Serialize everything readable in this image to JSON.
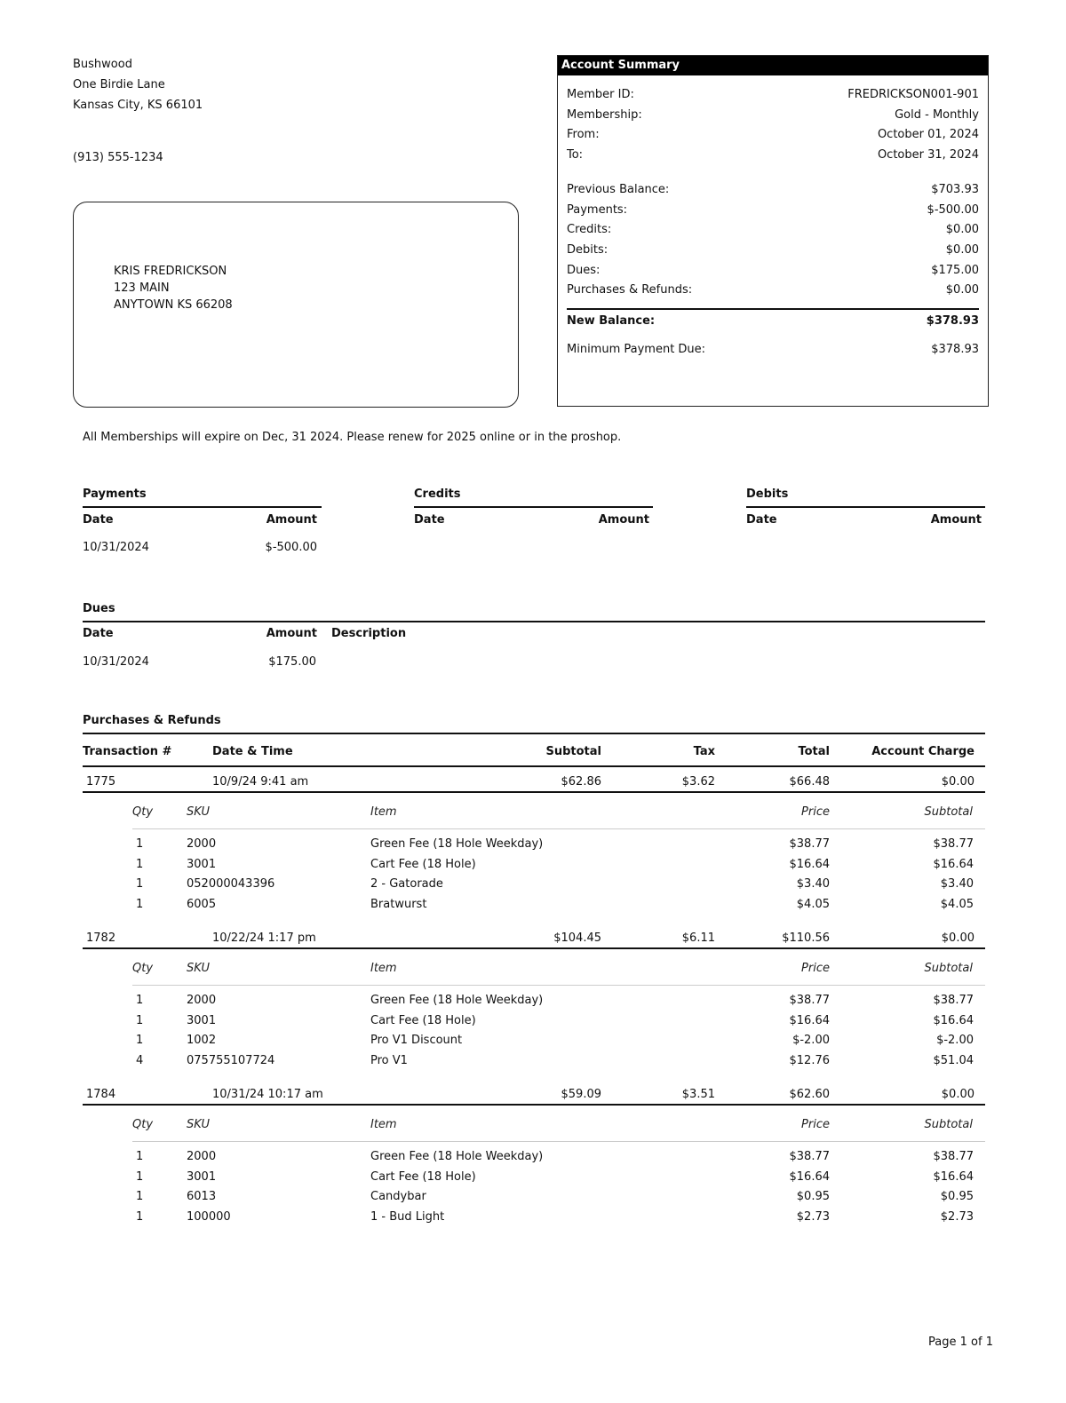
{
  "club": {
    "name": "Bushwood",
    "address1": "One Birdie Lane",
    "address2": "Kansas City, KS 66101",
    "phone": "(913) 555-1234"
  },
  "recipient": {
    "name": "KRIS FREDRICKSON",
    "address1": "123 MAIN",
    "address2": "ANYTOWN KS  66208"
  },
  "summary": {
    "title": "Account Summary",
    "rows": [
      {
        "label": "Member ID:",
        "value": "FREDRICKSON001-901"
      },
      {
        "label": "Membership:",
        "value": "Gold - Monthly"
      },
      {
        "label": "From:",
        "value": "October 01, 2024"
      },
      {
        "label": "To:",
        "value": "October 31, 2024"
      },
      {
        "label": "Previous Balance:",
        "value": "$703.93"
      },
      {
        "label": "Payments:",
        "value": "$-500.00"
      },
      {
        "label": "Credits:",
        "value": "$0.00"
      },
      {
        "label": "Debits:",
        "value": "$0.00"
      },
      {
        "label": "Dues:",
        "value": "$175.00"
      },
      {
        "label": "Purchases & Refunds:",
        "value": "$0.00"
      }
    ],
    "new_balance_label": "New Balance:",
    "new_balance": "$378.93",
    "min_payment_label": "Minimum Payment Due:",
    "min_payment": "$378.93"
  },
  "notice": "All Memberships will expire on Dec, 31 2024.  Please renew for 2025 online or in the proshop.",
  "payments": {
    "title": "Payments",
    "date_label": "Date",
    "amount_label": "Amount",
    "rows": [
      {
        "date": "10/31/2024",
        "amount": "$-500.00"
      }
    ]
  },
  "credits": {
    "title": "Credits",
    "date_label": "Date",
    "amount_label": "Amount"
  },
  "debits": {
    "title": "Debits",
    "date_label": "Date",
    "amount_label": "Amount"
  },
  "dues": {
    "title": "Dues",
    "date_label": "Date",
    "amount_label": "Amount",
    "description_label": "Description",
    "rows": [
      {
        "date": "10/31/2024",
        "amount": "$175.00",
        "description": ""
      }
    ]
  },
  "purchases": {
    "title": "Purchases & Refunds",
    "headers": {
      "txn": "Transaction #",
      "datetime": "Date & Time",
      "subtotal": "Subtotal",
      "tax": "Tax",
      "total": "Total",
      "account_charge": "Account Charge"
    },
    "item_headers": {
      "qty": "Qty",
      "sku": "SKU",
      "item": "Item",
      "price": "Price",
      "subtotal": "Subtotal"
    },
    "transactions": [
      {
        "txn": "1775",
        "datetime": "10/9/24   9:41 am",
        "subtotal": "$62.86",
        "tax": "$3.62",
        "total": "$66.48",
        "account_charge": "$0.00",
        "items": [
          {
            "qty": "1",
            "sku": "2000",
            "item": "Green Fee (18 Hole Weekday)",
            "price": "$38.77",
            "subtotal": "$38.77"
          },
          {
            "qty": "1",
            "sku": "3001",
            "item": "Cart Fee (18 Hole)",
            "price": "$16.64",
            "subtotal": "$16.64"
          },
          {
            "qty": "1",
            "sku": "052000043396",
            "item": "2 - Gatorade",
            "price": "$3.40",
            "subtotal": "$3.40"
          },
          {
            "qty": "1",
            "sku": "6005",
            "item": "Bratwurst",
            "price": "$4.05",
            "subtotal": "$4.05"
          }
        ]
      },
      {
        "txn": "1782",
        "datetime": "10/22/24   1:17 pm",
        "subtotal": "$104.45",
        "tax": "$6.11",
        "total": "$110.56",
        "account_charge": "$0.00",
        "items": [
          {
            "qty": "1",
            "sku": "2000",
            "item": "Green Fee (18 Hole Weekday)",
            "price": "$38.77",
            "subtotal": "$38.77"
          },
          {
            "qty": "1",
            "sku": "3001",
            "item": "Cart Fee (18 Hole)",
            "price": "$16.64",
            "subtotal": "$16.64"
          },
          {
            "qty": "1",
            "sku": "1002",
            "item": "Pro V1 Discount",
            "price": "$-2.00",
            "subtotal": "$-2.00"
          },
          {
            "qty": "4",
            "sku": "075755107724",
            "item": "Pro V1",
            "price": "$12.76",
            "subtotal": "$51.04"
          }
        ]
      },
      {
        "txn": "1784",
        "datetime": "10/31/24  10:17 am",
        "subtotal": "$59.09",
        "tax": "$3.51",
        "total": "$62.60",
        "account_charge": "$0.00",
        "items": [
          {
            "qty": "1",
            "sku": "2000",
            "item": "Green Fee (18 Hole Weekday)",
            "price": "$38.77",
            "subtotal": "$38.77"
          },
          {
            "qty": "1",
            "sku": "3001",
            "item": "Cart Fee (18 Hole)",
            "price": "$16.64",
            "subtotal": "$16.64"
          },
          {
            "qty": "1",
            "sku": "6013",
            "item": "Candybar",
            "price": "$0.95",
            "subtotal": "$0.95"
          },
          {
            "qty": "1",
            "sku": "100000",
            "item": "1 - Bud Light",
            "price": "$2.73",
            "subtotal": "$2.73"
          }
        ]
      }
    ]
  },
  "footer": {
    "page": "Page 1 of 1"
  }
}
